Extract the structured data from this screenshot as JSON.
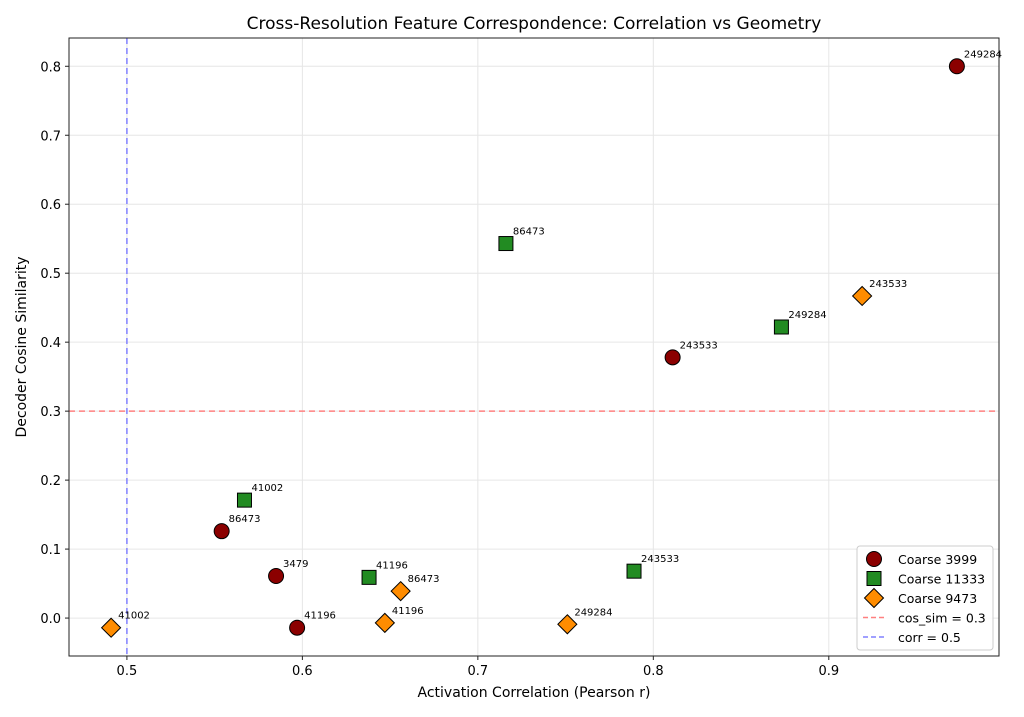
{
  "chart_data": {
    "type": "scatter",
    "title": "Cross-Resolution Feature Correspondence: Correlation vs Geometry",
    "xlabel": "Activation Correlation (Pearson r)",
    "ylabel": "Decoder Cosine Similarity",
    "xlim": [
      0.467,
      0.997
    ],
    "ylim": [
      -0.055,
      0.841
    ],
    "xticks": [
      0.5,
      0.6,
      0.7,
      0.8,
      0.9
    ],
    "xtick_labels": [
      "0.5",
      "0.6",
      "0.7",
      "0.8",
      "0.9"
    ],
    "yticks": [
      0.0,
      0.1,
      0.2,
      0.3,
      0.4,
      0.5,
      0.6,
      0.7,
      0.8
    ],
    "ytick_labels": [
      "0.0",
      "0.1",
      "0.2",
      "0.3",
      "0.4",
      "0.5",
      "0.6",
      "0.7",
      "0.8"
    ],
    "grid": true,
    "legend_position": "bottom-right",
    "series": [
      {
        "name": "Coarse 3999",
        "marker": "circle",
        "color": "#8b0000",
        "points": [
          {
            "x": 0.973,
            "y": 0.8,
            "label": "249284"
          },
          {
            "x": 0.811,
            "y": 0.378,
            "label": "243533"
          },
          {
            "x": 0.554,
            "y": 0.126,
            "label": "86473"
          },
          {
            "x": 0.585,
            "y": 0.061,
            "label": "3479"
          },
          {
            "x": 0.597,
            "y": -0.014,
            "label": "41196"
          }
        ]
      },
      {
        "name": "Coarse 11333",
        "marker": "square",
        "color": "#228b22",
        "points": [
          {
            "x": 0.716,
            "y": 0.543,
            "label": "86473"
          },
          {
            "x": 0.873,
            "y": 0.422,
            "label": "249284"
          },
          {
            "x": 0.567,
            "y": 0.171,
            "label": "41002"
          },
          {
            "x": 0.638,
            "y": 0.059,
            "label": "41196"
          },
          {
            "x": 0.789,
            "y": 0.068,
            "label": "243533"
          }
        ]
      },
      {
        "name": "Coarse 9473",
        "marker": "diamond",
        "color": "#ff8c00",
        "points": [
          {
            "x": 0.919,
            "y": 0.467,
            "label": "243533"
          },
          {
            "x": 0.656,
            "y": 0.039,
            "label": "86473"
          },
          {
            "x": 0.647,
            "y": -0.007,
            "label": "41196"
          },
          {
            "x": 0.751,
            "y": -0.009,
            "label": "249284"
          },
          {
            "x": 0.491,
            "y": -0.014,
            "label": "41002"
          }
        ]
      }
    ],
    "reference_lines": [
      {
        "name": "cos_sim = 0.3",
        "orientation": "horizontal",
        "value": 0.3,
        "color": "#ff8080"
      },
      {
        "name": "corr = 0.5",
        "orientation": "vertical",
        "value": 0.5,
        "color": "#8080ff"
      }
    ]
  }
}
